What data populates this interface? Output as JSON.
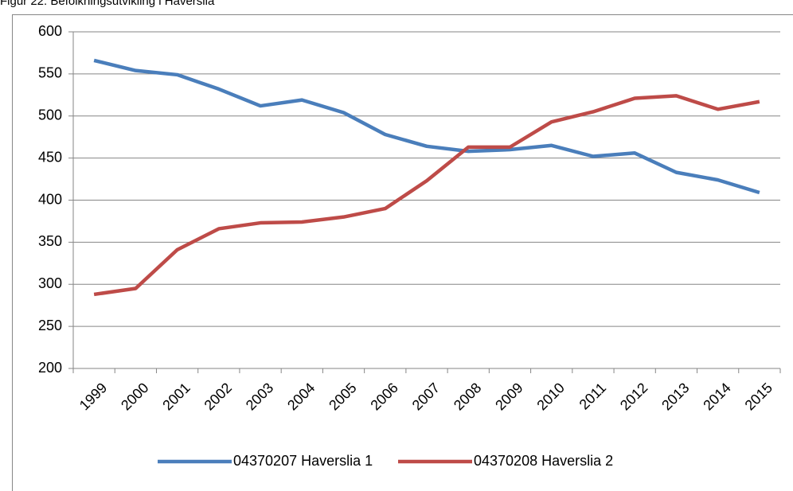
{
  "chart_data": {
    "type": "line",
    "title": "Figur 22: Befolkningsutvikling i Haverslia",
    "categories": [
      "1999",
      "2000",
      "2001",
      "2002",
      "2003",
      "2004",
      "2005",
      "2006",
      "2007",
      "2008",
      "2009",
      "2010",
      "2011",
      "2012",
      "2013",
      "2014",
      "2015"
    ],
    "series": [
      {
        "name": "04370207 Haverslia 1",
        "color": "#4a7ebb",
        "values": [
          566,
          554,
          549,
          532,
          512,
          519,
          504,
          478,
          464,
          458,
          460,
          465,
          452,
          456,
          433,
          424,
          409
        ]
      },
      {
        "name": "04370208 Haverslia 2",
        "color": "#be4b48",
        "values": [
          288,
          295,
          341,
          366,
          373,
          374,
          380,
          390,
          423,
          463,
          463,
          493,
          505,
          521,
          524,
          508,
          517
        ]
      }
    ],
    "ylim": [
      200,
      600
    ],
    "yticks": [
      200,
      250,
      300,
      350,
      400,
      450,
      500,
      550,
      600
    ],
    "grid": true,
    "legend": "bottom"
  }
}
